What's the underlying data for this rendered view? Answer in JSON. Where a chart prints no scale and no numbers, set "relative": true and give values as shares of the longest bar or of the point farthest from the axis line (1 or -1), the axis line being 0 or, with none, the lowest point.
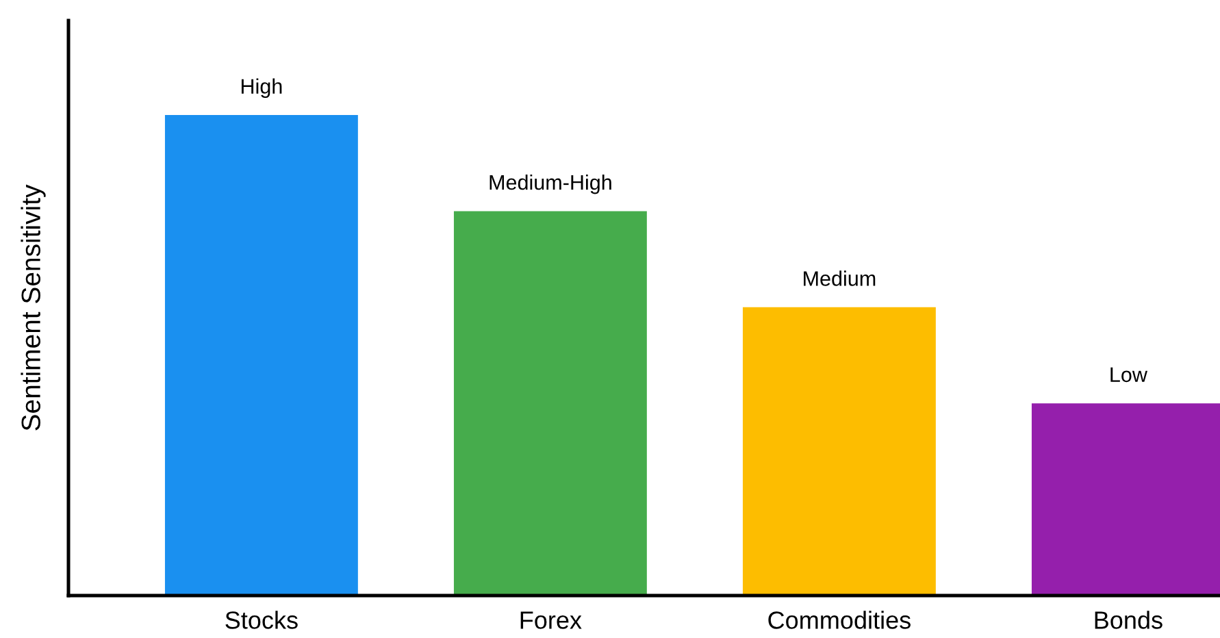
{
  "chart_data": {
    "type": "bar",
    "ylabel": "Sentiment Sensitivity",
    "relative": true,
    "categories": [
      "Stocks",
      "Forex",
      "Commodities",
      "Bonds"
    ],
    "values": [
      1,
      0.8,
      0.6,
      0.4
    ],
    "colors": [
      "#1a90f0",
      "#46ac4c",
      "#fdbd00",
      "#951fac"
    ],
    "annotations": [
      {
        "text": "High",
        "x": "Stocks",
        "y": 1
      },
      {
        "text": "Medium-High",
        "x": "Forex",
        "y": 0.8
      },
      {
        "text": "Medium",
        "x": "Commodities",
        "y": 0.6
      },
      {
        "text": "Low",
        "x": "Bonds",
        "y": 0.4
      }
    ],
    "grid": false,
    "legend": false
  }
}
